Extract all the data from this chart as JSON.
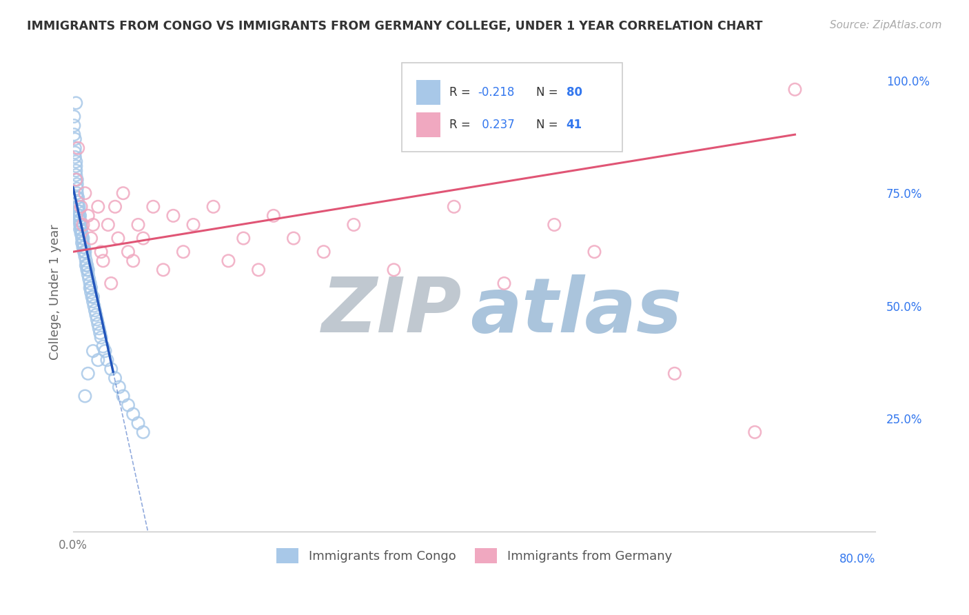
{
  "title": "IMMIGRANTS FROM CONGO VS IMMIGRANTS FROM GERMANY COLLEGE, UNDER 1 YEAR CORRELATION CHART",
  "source": "Source: ZipAtlas.com",
  "ylabel": "College, Under 1 year",
  "R_congo": -0.218,
  "N_congo": 80,
  "R_germany": 0.237,
  "N_germany": 41,
  "color_congo": "#a8c8e8",
  "color_germany": "#f0a8c0",
  "color_trend_congo": "#2255bb",
  "color_trend_germany": "#e05575",
  "watermark_zip": "#c0c8d0",
  "watermark_atlas": "#aac4dc",
  "legend_label1": "Immigrants from Congo",
  "legend_label2": "Immigrants from Germany",
  "xlim": [
    0.0,
    0.8
  ],
  "ylim": [
    0.0,
    1.06
  ],
  "y_ticks": [
    0.0,
    0.25,
    0.5,
    0.75,
    1.0
  ],
  "y_tick_labels": [
    "",
    "25.0%",
    "50.0%",
    "75.0%",
    "100.0%"
  ],
  "background_color": "#ffffff",
  "grid_color": "#dddddd",
  "congo_x": [
    0.001,
    0.001,
    0.001,
    0.002,
    0.002,
    0.002,
    0.002,
    0.003,
    0.003,
    0.003,
    0.003,
    0.003,
    0.004,
    0.004,
    0.004,
    0.004,
    0.004,
    0.005,
    0.005,
    0.005,
    0.005,
    0.006,
    0.006,
    0.006,
    0.006,
    0.007,
    0.007,
    0.007,
    0.007,
    0.008,
    0.008,
    0.008,
    0.009,
    0.009,
    0.009,
    0.01,
    0.01,
    0.01,
    0.011,
    0.011,
    0.012,
    0.012,
    0.013,
    0.013,
    0.014,
    0.014,
    0.015,
    0.015,
    0.016,
    0.017,
    0.017,
    0.018,
    0.018,
    0.019,
    0.02,
    0.02,
    0.021,
    0.022,
    0.023,
    0.024,
    0.025,
    0.026,
    0.027,
    0.028,
    0.03,
    0.032,
    0.034,
    0.038,
    0.042,
    0.046,
    0.05,
    0.055,
    0.06,
    0.065,
    0.07,
    0.012,
    0.015,
    0.02,
    0.025,
    0.003
  ],
  "congo_y": [
    0.92,
    0.9,
    0.88,
    0.87,
    0.85,
    0.84,
    0.83,
    0.82,
    0.81,
    0.8,
    0.79,
    0.78,
    0.78,
    0.77,
    0.76,
    0.75,
    0.74,
    0.74,
    0.73,
    0.72,
    0.71,
    0.72,
    0.71,
    0.7,
    0.69,
    0.7,
    0.69,
    0.68,
    0.67,
    0.68,
    0.67,
    0.66,
    0.66,
    0.65,
    0.64,
    0.65,
    0.64,
    0.63,
    0.63,
    0.62,
    0.62,
    0.61,
    0.6,
    0.59,
    0.59,
    0.58,
    0.58,
    0.57,
    0.56,
    0.55,
    0.54,
    0.54,
    0.53,
    0.52,
    0.52,
    0.51,
    0.5,
    0.49,
    0.48,
    0.47,
    0.46,
    0.45,
    0.44,
    0.43,
    0.41,
    0.4,
    0.38,
    0.36,
    0.34,
    0.32,
    0.3,
    0.28,
    0.26,
    0.24,
    0.22,
    0.3,
    0.35,
    0.4,
    0.38,
    0.95
  ],
  "germany_x": [
    0.003,
    0.005,
    0.008,
    0.01,
    0.012,
    0.015,
    0.018,
    0.02,
    0.025,
    0.028,
    0.03,
    0.035,
    0.038,
    0.042,
    0.045,
    0.05,
    0.055,
    0.06,
    0.065,
    0.07,
    0.08,
    0.09,
    0.1,
    0.11,
    0.12,
    0.14,
    0.155,
    0.17,
    0.185,
    0.2,
    0.22,
    0.25,
    0.28,
    0.32,
    0.38,
    0.43,
    0.48,
    0.52,
    0.6,
    0.68,
    0.72
  ],
  "germany_y": [
    0.78,
    0.85,
    0.72,
    0.68,
    0.75,
    0.7,
    0.65,
    0.68,
    0.72,
    0.62,
    0.6,
    0.68,
    0.55,
    0.72,
    0.65,
    0.75,
    0.62,
    0.6,
    0.68,
    0.65,
    0.72,
    0.58,
    0.7,
    0.62,
    0.68,
    0.72,
    0.6,
    0.65,
    0.58,
    0.7,
    0.65,
    0.62,
    0.68,
    0.58,
    0.72,
    0.55,
    0.68,
    0.62,
    0.35,
    0.22,
    0.98
  ],
  "trend_congo_x_solid_end": 0.04,
  "trend_congo_x_dash_end": 0.3,
  "trend_germany_x_start": 0.0,
  "trend_germany_x_end": 0.72
}
